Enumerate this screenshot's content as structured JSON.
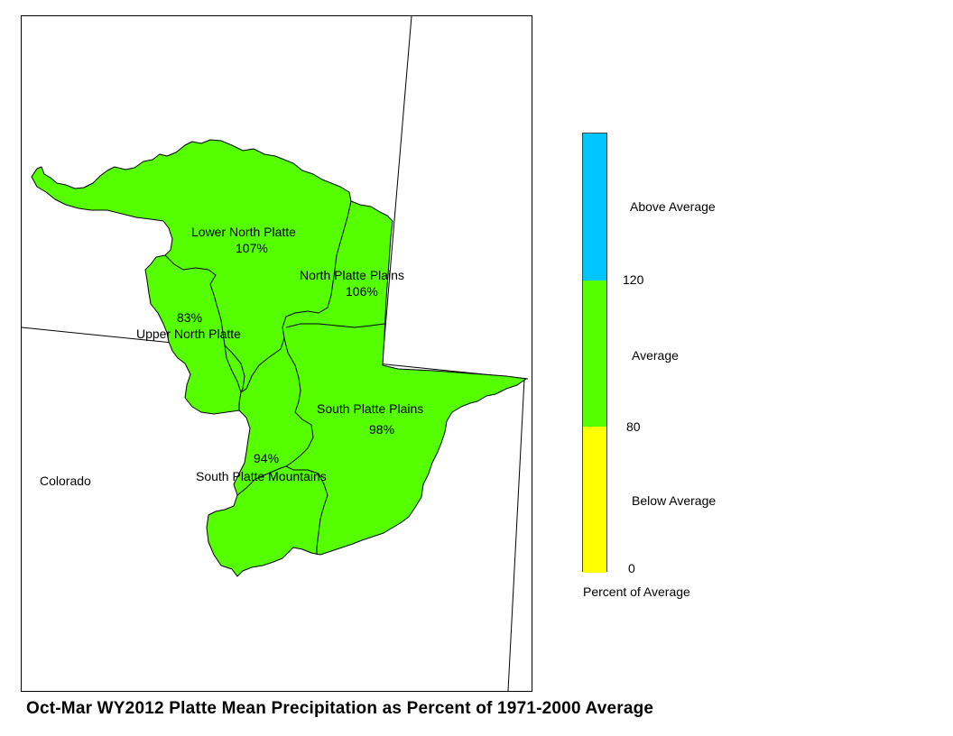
{
  "title": "Oct-Mar WY2012 Platte Mean Precipitation as Percent of 1971-2000 Average",
  "state_label": "Colorado",
  "basins": [
    {
      "name": "Lower North Platte",
      "percent": "107%",
      "percent_of_average": 107
    },
    {
      "name": "North Platte Plains",
      "percent": "106%",
      "percent_of_average": 106
    },
    {
      "name": "Upper North Platte",
      "percent": "83%",
      "percent_of_average": 83
    },
    {
      "name": "South Platte Plains",
      "percent": "98%",
      "percent_of_average": 98
    },
    {
      "name": "South Platte Mountains",
      "percent": "94%",
      "percent_of_average": 94
    }
  ],
  "legend": {
    "title": "Percent of Average",
    "categories": [
      {
        "label": "Above Average",
        "color": "#00c5ff"
      },
      {
        "label": "Average",
        "color": "#55ff00"
      },
      {
        "label": "Below Average",
        "color": "#ffff00"
      }
    ],
    "breaks": [
      "120",
      "80",
      "0"
    ]
  },
  "colors": {
    "basin_fill": "#55ff00",
    "boundary": "#000000"
  }
}
